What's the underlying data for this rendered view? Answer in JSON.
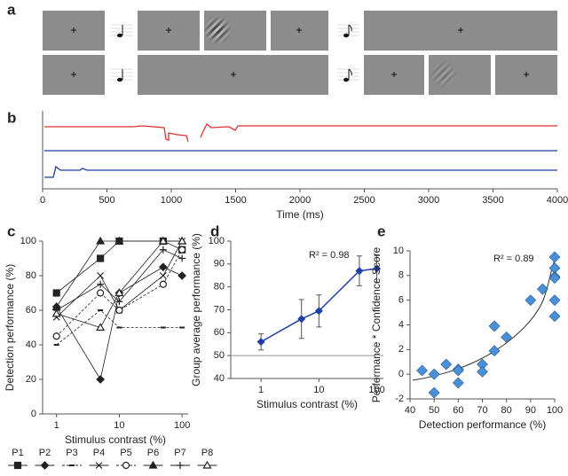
{
  "panel_labels": [
    "a",
    "b",
    "c",
    "d",
    "e"
  ],
  "chart_data": [
    {
      "type": "axis",
      "xlabel": "Time (ms)",
      "xlim": [
        0,
        4000
      ],
      "xticks": [
        0,
        500,
        1000,
        1500,
        2000,
        2500,
        3000,
        3500,
        4000
      ]
    },
    {
      "type": "line",
      "xlabel": "Stimulus contrast (%)",
      "ylabel": "Detection performance (%)",
      "log_x": true,
      "x": [
        1,
        5,
        10,
        50,
        100
      ],
      "xlim": [
        0.6,
        125
      ],
      "xticks": [
        1,
        10,
        100
      ],
      "ylim": [
        0,
        100
      ],
      "yticks": [
        0,
        20,
        40,
        60,
        80,
        100
      ],
      "series": [
        {
          "name": "P1",
          "marker": "square",
          "dash": false,
          "color": "#222",
          "values": [
            70,
            90,
            100,
            100,
            95
          ]
        },
        {
          "name": "P2",
          "marker": "diamond",
          "dash": false,
          "color": "#222",
          "values": [
            62,
            20,
            70,
            85,
            80
          ]
        },
        {
          "name": "P3",
          "marker": "dash",
          "dash": true,
          "color": "#222",
          "values": [
            40,
            60,
            50,
            50,
            50
          ]
        },
        {
          "name": "P4",
          "marker": "x",
          "dash": false,
          "color": "#222",
          "values": [
            56,
            80,
            60,
            80,
            100
          ]
        },
        {
          "name": "P5",
          "marker": "circle",
          "dash": true,
          "color": "#222",
          "values": [
            45,
            70,
            60,
            75,
            95
          ]
        },
        {
          "name": "P6",
          "marker": "triangle",
          "dash": false,
          "color": "#222",
          "values": [
            62,
            100,
            100,
            100,
            100
          ]
        },
        {
          "name": "P7",
          "marker": "plus",
          "dash": false,
          "color": "#222",
          "values": [
            60,
            75,
            65,
            95,
            90
          ]
        },
        {
          "name": "P8",
          "marker": "opentriangle",
          "dash": false,
          "color": "#222",
          "values": [
            58,
            50,
            70,
            100,
            100
          ]
        }
      ]
    },
    {
      "type": "line",
      "xlabel": "Stimulus contrast (%)",
      "ylabel": "Group average performance (%)",
      "annotation": "R² = 0.98",
      "log_x": true,
      "x": [
        1,
        5,
        10,
        50,
        100
      ],
      "xlim": [
        0.3,
        130
      ],
      "xticks": [
        1,
        10,
        100
      ],
      "ylim": [
        40,
        100
      ],
      "yticks": [
        40,
        50,
        60,
        70,
        80,
        90,
        100
      ],
      "reference_line": 50,
      "series": [
        {
          "color": "#1f3fa6",
          "values": [
            56,
            66,
            69.5,
            87,
            88
          ],
          "errors": [
            3.5,
            8.5,
            7,
            6.5,
            6
          ]
        }
      ]
    },
    {
      "type": "scatter",
      "xlabel": "Detection performance (%)",
      "ylabel": "Performance * Confidence Score",
      "annotation": "R² = 0.89",
      "color": "#4a90d9",
      "xlim": [
        40,
        100
      ],
      "xticks": [
        40,
        50,
        60,
        70,
        80,
        90,
        100
      ],
      "ylim": [
        -2,
        10
      ],
      "yticks": [
        -2,
        0,
        2,
        4,
        6,
        8,
        10
      ],
      "x": [
        45,
        50,
        50,
        55,
        60,
        60,
        60,
        70,
        70,
        75,
        75,
        80,
        90,
        95,
        100,
        100,
        100,
        100,
        100,
        100
      ],
      "y": [
        0.3,
        0,
        -1.5,
        0.8,
        0.4,
        -0.7,
        0.3,
        0.8,
        0.2,
        1.9,
        3.9,
        3,
        6,
        6.9,
        9.5,
        8.6,
        7.9,
        7.8,
        6,
        4.7
      ]
    }
  ]
}
